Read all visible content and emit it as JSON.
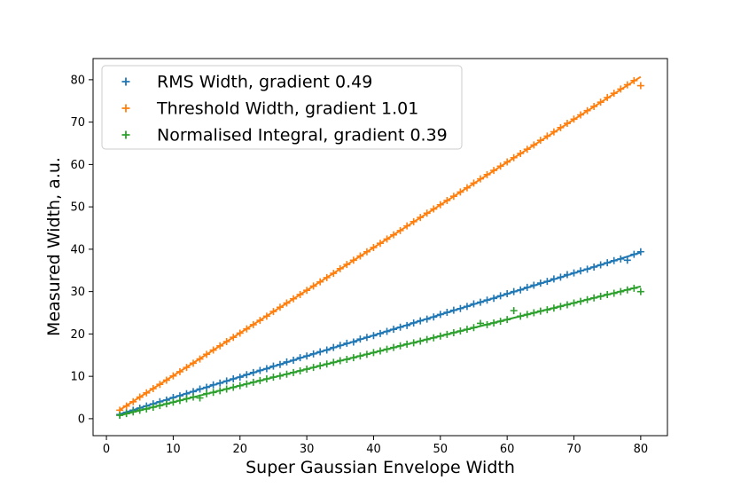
{
  "chart_data": {
    "type": "scatter",
    "title": "",
    "xlabel": "Super Gaussian Envelope Width",
    "ylabel": "Measured Width, a.u.",
    "xlim": [
      -2,
      84
    ],
    "ylim": [
      -4,
      85
    ],
    "xticks": [
      0,
      10,
      20,
      30,
      40,
      50,
      60,
      70,
      80
    ],
    "yticks": [
      0,
      10,
      20,
      30,
      40,
      50,
      60,
      70,
      80
    ],
    "grid": false,
    "legend_position": "top-left",
    "x_values": [
      2,
      3,
      4,
      5,
      6,
      7,
      8,
      9,
      10,
      11,
      12,
      13,
      14,
      15,
      16,
      17,
      18,
      19,
      20,
      21,
      22,
      23,
      24,
      25,
      26,
      27,
      28,
      29,
      30,
      31,
      32,
      33,
      34,
      35,
      36,
      37,
      38,
      39,
      40,
      41,
      42,
      43,
      44,
      45,
      46,
      47,
      48,
      49,
      50,
      51,
      52,
      53,
      54,
      55,
      56,
      57,
      58,
      59,
      60,
      61,
      62,
      63,
      64,
      65,
      66,
      67,
      68,
      69,
      70,
      71,
      72,
      73,
      74,
      75,
      76,
      77,
      78,
      79,
      80
    ],
    "series": [
      {
        "name": "RMS Width, gradient 0.49",
        "color": "#1f77b4",
        "gradient": 0.49,
        "values": [
          1.0,
          1.5,
          2.0,
          2.5,
          3.0,
          3.5,
          4.0,
          4.4,
          5.0,
          5.4,
          5.9,
          6.4,
          7.0,
          7.4,
          8.0,
          8.4,
          8.9,
          9.4,
          9.8,
          10.4,
          10.9,
          11.4,
          11.8,
          12.4,
          12.8,
          13.4,
          13.8,
          14.4,
          14.8,
          15.3,
          15.8,
          16.2,
          16.8,
          17.3,
          17.8,
          18.1,
          18.8,
          19.2,
          19.6,
          20.1,
          20.6,
          21.1,
          21.6,
          22.0,
          22.6,
          23.1,
          23.5,
          24.0,
          24.6,
          25.1,
          25.6,
          26.0,
          26.5,
          27.1,
          27.5,
          28.0,
          28.4,
          29.0,
          29.5,
          30.0,
          30.4,
          31.0,
          31.5,
          32.0,
          32.4,
          33.0,
          33.4,
          34.0,
          34.4,
          34.9,
          35.3,
          35.8,
          36.3,
          36.8,
          37.3,
          37.7,
          37.4,
          38.8,
          39.4
        ]
      },
      {
        "name": "Threshold Width, gradient 1.01",
        "color": "#ff7f0e",
        "gradient": 1.01,
        "values": [
          2.0,
          3.0,
          4.0,
          5.1,
          6.1,
          7.1,
          8.1,
          9.1,
          10.1,
          11.1,
          12.1,
          13.1,
          14.1,
          15.2,
          16.2,
          17.2,
          18.2,
          19.2,
          20.2,
          21.2,
          22.2,
          23.2,
          24.2,
          25.3,
          26.3,
          27.3,
          28.3,
          29.3,
          30.3,
          31.3,
          32.3,
          33.3,
          34.3,
          35.4,
          36.4,
          37.4,
          38.4,
          39.4,
          40.4,
          41.4,
          42.4,
          43.4,
          44.4,
          45.5,
          46.5,
          47.5,
          48.5,
          49.5,
          50.5,
          51.5,
          52.5,
          53.5,
          54.5,
          55.6,
          56.6,
          57.6,
          58.6,
          59.6,
          60.6,
          61.6,
          62.6,
          63.6,
          64.6,
          65.7,
          66.7,
          67.7,
          68.7,
          69.7,
          70.7,
          71.7,
          72.7,
          73.7,
          74.7,
          75.8,
          76.8,
          77.8,
          78.8,
          79.8,
          78.6
        ]
      },
      {
        "name": "Normalised Integral, gradient 0.39",
        "color": "#2ca02c",
        "gradient": 0.39,
        "values": [
          0.8,
          1.2,
          1.6,
          2.0,
          2.3,
          2.7,
          3.1,
          3.5,
          3.9,
          4.3,
          4.7,
          5.1,
          4.9,
          5.9,
          6.2,
          6.6,
          7.0,
          7.4,
          7.8,
          8.2,
          8.6,
          9.0,
          9.4,
          9.8,
          10.1,
          10.5,
          10.9,
          11.3,
          11.7,
          12.1,
          12.5,
          12.9,
          13.3,
          13.7,
          14.0,
          14.4,
          14.8,
          15.2,
          15.6,
          16.0,
          16.4,
          16.8,
          17.2,
          17.6,
          17.9,
          18.3,
          18.7,
          19.1,
          19.5,
          19.9,
          20.3,
          20.7,
          21.1,
          21.5,
          22.5,
          22.2,
          22.6,
          23.0,
          23.4,
          25.5,
          24.2,
          24.6,
          25.0,
          25.4,
          25.7,
          26.1,
          26.5,
          26.9,
          27.3,
          27.7,
          28.1,
          28.5,
          28.9,
          29.3,
          29.6,
          30.0,
          30.4,
          30.8,
          30.0
        ]
      }
    ]
  }
}
